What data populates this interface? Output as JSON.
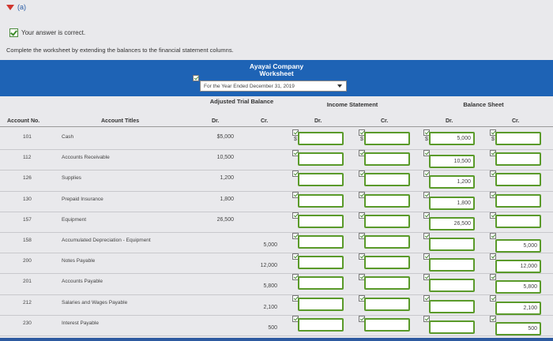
{
  "part_label": "(a)",
  "status": "Your answer is correct.",
  "instruction": "Complete the worksheet by extending the balances to the financial statement columns.",
  "company": "Ayayai Company",
  "worksheet_title": "Worksheet",
  "period": "For the Year Ended December 31, 2019",
  "columns": {
    "account_no": "Account No.",
    "account_titles": "Account Titles",
    "adjusted_trial_balance": "Adjusted Trial Balance",
    "income_statement": "Income Statement",
    "balance_sheet": "Balance Sheet",
    "dr": "Dr.",
    "cr": "Cr."
  },
  "dollar_sign": "$",
  "rows": [
    {
      "no": "101",
      "title": "Cash",
      "atb_dr": "$5,000",
      "atb_cr": "",
      "is_dr": "",
      "is_cr": "",
      "bs_dr": "5,000",
      "bs_cr": ""
    },
    {
      "no": "112",
      "title": "Accounts Receivable",
      "atb_dr": "10,500",
      "atb_cr": "",
      "is_dr": "",
      "is_cr": "",
      "bs_dr": "10,500",
      "bs_cr": ""
    },
    {
      "no": "126",
      "title": "Supplies",
      "atb_dr": "1,200",
      "atb_cr": "",
      "is_dr": "",
      "is_cr": "",
      "bs_dr": "1,200",
      "bs_cr": ""
    },
    {
      "no": "130",
      "title": "Prepaid Insurance",
      "atb_dr": "1,800",
      "atb_cr": "",
      "is_dr": "",
      "is_cr": "",
      "bs_dr": "1,800",
      "bs_cr": ""
    },
    {
      "no": "157",
      "title": "Equipment",
      "atb_dr": "26,500",
      "atb_cr": "",
      "is_dr": "",
      "is_cr": "",
      "bs_dr": "26,500",
      "bs_cr": ""
    },
    {
      "no": "158",
      "title": "Accumulated Depreciation - Equipment",
      "atb_dr": "",
      "atb_cr": "5,000",
      "is_dr": "",
      "is_cr": "",
      "bs_dr": "",
      "bs_cr": "5,000"
    },
    {
      "no": "200",
      "title": "Notes Payable",
      "atb_dr": "",
      "atb_cr": "12,000",
      "is_dr": "",
      "is_cr": "",
      "bs_dr": "",
      "bs_cr": "12,000"
    },
    {
      "no": "201",
      "title": "Accounts Payable",
      "atb_dr": "",
      "atb_cr": "5,800",
      "is_dr": "",
      "is_cr": "",
      "bs_dr": "",
      "bs_cr": "5,800"
    },
    {
      "no": "212",
      "title": "Salaries and Wages Payable",
      "atb_dr": "",
      "atb_cr": "2,100",
      "is_dr": "",
      "is_cr": "",
      "bs_dr": "",
      "bs_cr": "2,100"
    },
    {
      "no": "230",
      "title": "Interest Payable",
      "atb_dr": "",
      "atb_cr": "500",
      "is_dr": "",
      "is_cr": "",
      "bs_dr": "",
      "bs_cr": "500"
    }
  ]
}
